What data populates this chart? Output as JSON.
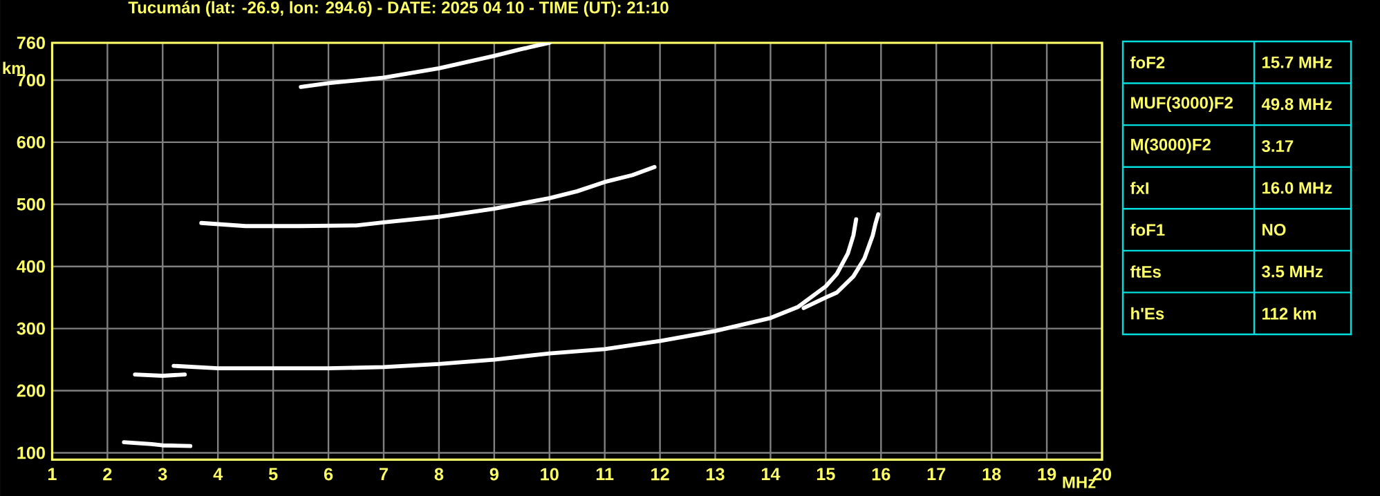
{
  "chart_data": [
    {
      "type": "line",
      "title": "Tucumán (lat: -26.9, lon: 294.6) - DATE: 2025 04 10 - TIME (UT): 21:10",
      "xlabel": "MHz",
      "ylabel": "km",
      "xlim": [
        1,
        20
      ],
      "ylim": [
        89,
        760
      ],
      "xticks": [
        1,
        2,
        3,
        4,
        5,
        6,
        7,
        8,
        9,
        10,
        11,
        12,
        13,
        14,
        15,
        16,
        17,
        18,
        19,
        20
      ],
      "yticks": [
        100,
        200,
        300,
        400,
        500,
        600,
        700,
        760
      ],
      "grid": true,
      "marker": "none",
      "line_style": "solid",
      "series": [
        {
          "color": "#ffffff",
          "x": [
            2.3,
            2.8,
            3.0,
            3.5
          ],
          "values": [
            117,
            114,
            112,
            111
          ]
        },
        {
          "color": "#ffffff",
          "x": [
            2.5,
            3.0,
            3.4
          ],
          "values": [
            226,
            224,
            226
          ]
        },
        {
          "color": "#ffffff",
          "x": [
            3.2,
            4,
            5,
            6,
            7,
            8,
            9,
            10,
            11,
            12,
            13,
            14,
            14.5,
            15,
            15.2,
            15.4,
            15.5,
            15.55
          ],
          "values": [
            240,
            236,
            236,
            236,
            238,
            243,
            250,
            260,
            267,
            280,
            296,
            317,
            335,
            368,
            388,
            421,
            450,
            476
          ]
        },
        {
          "color": "#ffffff",
          "x": [
            14.6,
            15,
            15.2,
            15.5,
            15.7,
            15.85,
            15.9,
            15.95
          ],
          "values": [
            333,
            350,
            358,
            384,
            413,
            450,
            469,
            484
          ]
        },
        {
          "color": "#ffffff",
          "x": [
            3.7,
            4.5,
            5.5,
            6.5,
            7,
            8,
            9,
            10,
            10.5,
            11,
            11.5,
            11.9
          ],
          "values": [
            470,
            465,
            465,
            466,
            471,
            480,
            493,
            510,
            521,
            536,
            547,
            560
          ]
        },
        {
          "color": "#ffffff",
          "x": [
            5.5,
            6,
            7,
            8,
            9,
            9.5,
            10
          ],
          "values": [
            689,
            695,
            704,
            719,
            739,
            750,
            760
          ]
        }
      ]
    },
    {
      "type": "other",
      "annotations": [
        "foF2",
        "15.7 MHz",
        "MUF(3000)F2",
        "49.8 MHz",
        "M(3000)F2",
        "3.17",
        "fxI",
        "16.0 MHz",
        "foF1",
        "NO",
        "ftEs",
        "3.5 MHz",
        "h'Es",
        "112 km"
      ]
    }
  ]
}
